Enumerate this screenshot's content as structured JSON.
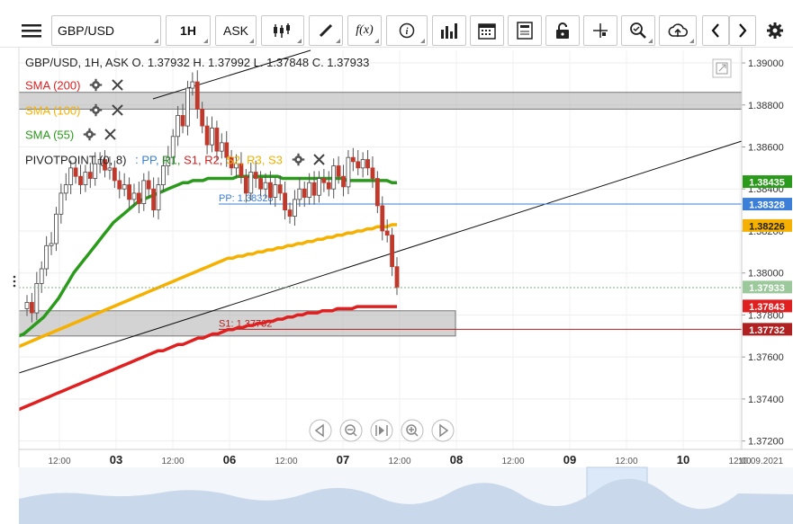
{
  "toolbar": {
    "symbol": "GBP/USD",
    "timeframe": "1H",
    "price_type": "ASK",
    "icons": [
      "menu-icon",
      "candles-icon",
      "draw-pen-icon",
      "function-icon",
      "info-icon",
      "volume-bars-icon",
      "calendar-icon",
      "notes-icon",
      "lock-icon",
      "crosshair-icon",
      "zoom-icon",
      "cloud-upload-icon",
      "prev-icon",
      "next-icon",
      "settings-icon"
    ]
  },
  "legend": {
    "ohlc": "GBP/USD, 1H, ASK   O. 1.37932 H. 1.37992 L. 1.37848 C. 1.37933",
    "sma200": "SMA (200)",
    "sma100": "SMA (100)",
    "sma55": "SMA (55)",
    "pivot_label": "PIVOTPOINT (0, 8)",
    "pivot_sep": ":",
    "pivot_items": [
      {
        "label": "PP,",
        "color": "#3b7fd8"
      },
      {
        "label": "R1,",
        "color": "#2a9a2a"
      },
      {
        "label": "S1,",
        "color": "#d02020"
      },
      {
        "label": "R2,",
        "color": "#d02020"
      },
      {
        "label": "S2,",
        "color": "#f0b000"
      },
      {
        "label": "R3,",
        "color": "#f0b000"
      },
      {
        "label": "S3",
        "color": "#f0b000"
      }
    ]
  },
  "colors": {
    "sma200": "#e02020",
    "sma100": "#f5b000",
    "sma55": "#2a9a1a",
    "pp": "#3b7fd8",
    "s1": "#b02020",
    "candle": "#c0392b",
    "bull": "#2e7d32"
  },
  "chart_data": {
    "type": "candlestick",
    "symbol": "GBP/USD",
    "timeframe": "1H",
    "ylim": [
      1.3716,
      1.3906
    ],
    "yticks": [
      "1.39000",
      "1.38800",
      "1.38600",
      "1.38400",
      "1.38200",
      "1.38000",
      "1.37800",
      "1.37600",
      "1.37400",
      "1.37200"
    ],
    "ytick_values": [
      1.39,
      1.388,
      1.386,
      1.384,
      1.382,
      1.38,
      1.378,
      1.376,
      1.374,
      1.372
    ],
    "xticks": [
      "12:00",
      "03",
      "12:00",
      "06",
      "12:00",
      "07",
      "12:00",
      "08",
      "12:00",
      "09",
      "12:00",
      "10",
      "12:00",
      "10.09.2021"
    ],
    "price_labels": [
      {
        "name": "SMA (55)",
        "value": "1.38435",
        "color": "#2a9a1a"
      },
      {
        "name": "PP",
        "value": "1.38328",
        "color": "#3b7fd8"
      },
      {
        "name": "SMA (100)",
        "value": "1.38226",
        "color": "#f5b000"
      },
      {
        "name": "Close",
        "value": "1.37933",
        "color": "#9bc99b"
      },
      {
        "name": "SMA (200)",
        "value": "1.37843",
        "color": "#e02020"
      },
      {
        "name": "S1",
        "value": "1.37732",
        "color": "#b02020"
      }
    ],
    "pivot_lines": [
      {
        "name": "PP",
        "text": "PP: 1.38328",
        "value": 1.38328,
        "color": "#3b7fd8"
      },
      {
        "name": "S1",
        "text": "S1: 1.37732",
        "value": 1.37732,
        "color": "#b02020"
      }
    ],
    "zones": [
      {
        "name": "resistance-zone",
        "from": 1.3878,
        "to": 1.3886
      },
      {
        "name": "support-zone",
        "from": 1.377,
        "to": 1.3782
      }
    ],
    "closes": [
      1.3786,
      1.3781,
      1.3795,
      1.3802,
      1.3813,
      1.3814,
      1.3828,
      1.3838,
      1.3842,
      1.385,
      1.3846,
      1.3842,
      1.3848,
      1.3845,
      1.3852,
      1.3854,
      1.3849,
      1.385,
      1.3844,
      1.384,
      1.3842,
      1.3835,
      1.3838,
      1.3833,
      1.3844,
      1.384,
      1.383,
      1.3842,
      1.3851,
      1.3855,
      1.3865,
      1.3875,
      1.387,
      1.3888,
      1.3891,
      1.3878,
      1.387,
      1.3861,
      1.3869,
      1.3858,
      1.3862,
      1.3855,
      1.385,
      1.3852,
      1.3846,
      1.3838,
      1.3848,
      1.3845,
      1.384,
      1.3843,
      1.3836,
      1.3842,
      1.3838,
      1.383,
      1.3827,
      1.3835,
      1.384,
      1.3836,
      1.3843,
      1.3837,
      1.3845,
      1.3843,
      1.384,
      1.3851,
      1.3846,
      1.3841,
      1.3855,
      1.3853,
      1.385,
      1.3854,
      1.385,
      1.3845,
      1.3832,
      1.382,
      1.3818,
      1.3803,
      1.3793
    ],
    "sma55": [
      1.377,
      1.3771,
      1.3773,
      1.3775,
      1.3777,
      1.3779,
      1.3782,
      1.3785,
      1.3788,
      1.3792,
      1.3796,
      1.38,
      1.3803,
      1.3806,
      1.3809,
      1.3812,
      1.3815,
      1.3818,
      1.3821,
      1.3824,
      1.3826,
      1.3828,
      1.383,
      1.3832,
      1.3834,
      1.3835,
      1.3836,
      1.3837,
      1.3838,
      1.3839,
      1.384,
      1.3841,
      1.3842,
      1.3843,
      1.3843,
      1.3844,
      1.3844,
      1.3844,
      1.3845,
      1.3845,
      1.3845,
      1.3845,
      1.3845,
      1.3845,
      1.3846,
      1.3846,
      1.3846,
      1.3846,
      1.3846,
      1.3846,
      1.3846,
      1.3846,
      1.3846,
      1.3845,
      1.3845,
      1.3845,
      1.3845,
      1.3845,
      1.3845,
      1.3845,
      1.3845,
      1.3845,
      1.3845,
      1.3845,
      1.3845,
      1.3845,
      1.3844,
      1.3844,
      1.3844,
      1.3844,
      1.3844,
      1.3844,
      1.3844,
      1.3844,
      1.3844,
      1.3843,
      1.3843
    ],
    "sma100": [
      1.3765,
      1.3766,
      1.3767,
      1.3768,
      1.3769,
      1.377,
      1.3771,
      1.3772,
      1.3773,
      1.3774,
      1.3775,
      1.3776,
      1.3777,
      1.3778,
      1.3779,
      1.378,
      1.3781,
      1.3782,
      1.3783,
      1.3784,
      1.3785,
      1.3786,
      1.3787,
      1.3788,
      1.3789,
      1.379,
      1.3791,
      1.3792,
      1.3793,
      1.3794,
      1.3795,
      1.3796,
      1.3797,
      1.3798,
      1.3799,
      1.38,
      1.3801,
      1.3802,
      1.3803,
      1.3804,
      1.3805,
      1.3806,
      1.3807,
      1.3807,
      1.3808,
      1.3808,
      1.3809,
      1.3809,
      1.381,
      1.381,
      1.3811,
      1.3811,
      1.3812,
      1.3812,
      1.3813,
      1.3813,
      1.3814,
      1.3814,
      1.3815,
      1.3815,
      1.3816,
      1.3816,
      1.3817,
      1.3817,
      1.3818,
      1.3818,
      1.3819,
      1.3819,
      1.382,
      1.382,
      1.3821,
      1.3821,
      1.3822,
      1.3822,
      1.3822,
      1.3823,
      1.3823
    ],
    "sma200": [
      1.3735,
      1.3736,
      1.3737,
      1.3738,
      1.3739,
      1.374,
      1.3741,
      1.3742,
      1.3743,
      1.3744,
      1.3745,
      1.3746,
      1.3747,
      1.3748,
      1.3749,
      1.375,
      1.3751,
      1.3752,
      1.3753,
      1.3754,
      1.3755,
      1.3756,
      1.3757,
      1.3758,
      1.3759,
      1.376,
      1.3761,
      1.3762,
      1.3763,
      1.3763,
      1.3764,
      1.3765,
      1.3766,
      1.3766,
      1.3767,
      1.3768,
      1.3769,
      1.3769,
      1.377,
      1.3771,
      1.3771,
      1.3772,
      1.3773,
      1.3773,
      1.3774,
      1.3774,
      1.3775,
      1.3775,
      1.3776,
      1.3776,
      1.3777,
      1.3777,
      1.3778,
      1.3778,
      1.3779,
      1.3779,
      1.378,
      1.378,
      1.3781,
      1.3781,
      1.3781,
      1.3782,
      1.3782,
      1.3782,
      1.3783,
      1.3783,
      1.3783,
      1.3783,
      1.3784,
      1.3784,
      1.3784,
      1.3784,
      1.3784,
      1.3784,
      1.3784,
      1.3784,
      1.3784
    ]
  }
}
